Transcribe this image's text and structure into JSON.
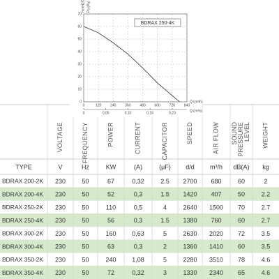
{
  "chart": {
    "type": "line",
    "label": "BDRAX 250-4K",
    "ylabel": "Ps (Pa)",
    "ylabel2": "mmH2O",
    "xlabel": "Q (m³/h)",
    "xlabel2": "Q (m³/s)",
    "x": [
      0,
      120,
      240,
      360,
      480,
      600,
      720,
      780
    ],
    "values": [
      60,
      55,
      47,
      38,
      27,
      15,
      5,
      0
    ],
    "color": "#444444",
    "xlim": [
      0,
      840
    ],
    "xticks": [
      0,
      120,
      240,
      360,
      480,
      600,
      720,
      840
    ],
    "x2lim": [
      0,
      0.2333
    ],
    "x2ticks": [
      0,
      {
        "value": 0.05,
        "label": "0,05"
      },
      {
        "value": 0.1,
        "label": "0,10"
      },
      {
        "value": 0.15,
        "label": "0,15"
      },
      {
        "value": 0.2,
        "label": "0,20"
      }
    ],
    "ylim": [
      0,
      70
    ],
    "yticks": [
      0,
      10,
      20,
      30,
      40,
      50,
      60,
      70
    ],
    "grid": true
  },
  "table": {
    "headers": [
      "",
      "VOLTAGE",
      "FREQUENCY",
      "POWER",
      "CURRENT",
      "CAPACITOR",
      "SPEED",
      "AIR FLOW",
      "SOUND PRESSURE LEVEL",
      "WEIGHT"
    ],
    "units": [
      "TYPE",
      "V",
      "Hz",
      "KW",
      "(A)",
      "(μF)",
      "d/d",
      "m³/h",
      "dB(A)",
      "kg"
    ],
    "rows": [
      [
        "BDRAX 200-2K",
        "230",
        "50",
        "67",
        "0,32",
        "2.5",
        "2700",
        "680",
        "60",
        "2"
      ],
      [
        "BDRAX 200-4K",
        "230",
        "50",
        "52",
        "0,3",
        "1.5",
        "1420",
        "407",
        "50",
        "2.2"
      ],
      [
        "BDRAX 250-2K",
        "230",
        "50",
        "110",
        "0,5",
        "4",
        "2640",
        "1500",
        "70",
        "2.7"
      ],
      [
        "BDRAX 250-4K",
        "230",
        "50",
        "56",
        "0,3",
        "1.5",
        "1380",
        "760",
        "60",
        "2.7"
      ],
      [
        "BDRAX 300-2K",
        "230",
        "50",
        "160",
        "0,63",
        "5",
        "2630",
        "2020",
        "72",
        "3.5"
      ],
      [
        "BDRAX 300-4K",
        "230",
        "50",
        "63",
        "0,3",
        "2",
        "1360",
        "1410",
        "60",
        "3.5"
      ],
      [
        "BDRAX 350-2K",
        "230",
        "50",
        "240",
        "1,08",
        "5",
        "2280",
        "3510",
        "78",
        "4.6"
      ],
      [
        "BDRAX 350-4K",
        "230",
        "50",
        "72",
        "0,32",
        "3",
        "1330",
        "2340",
        "65",
        "4.6"
      ]
    ]
  }
}
